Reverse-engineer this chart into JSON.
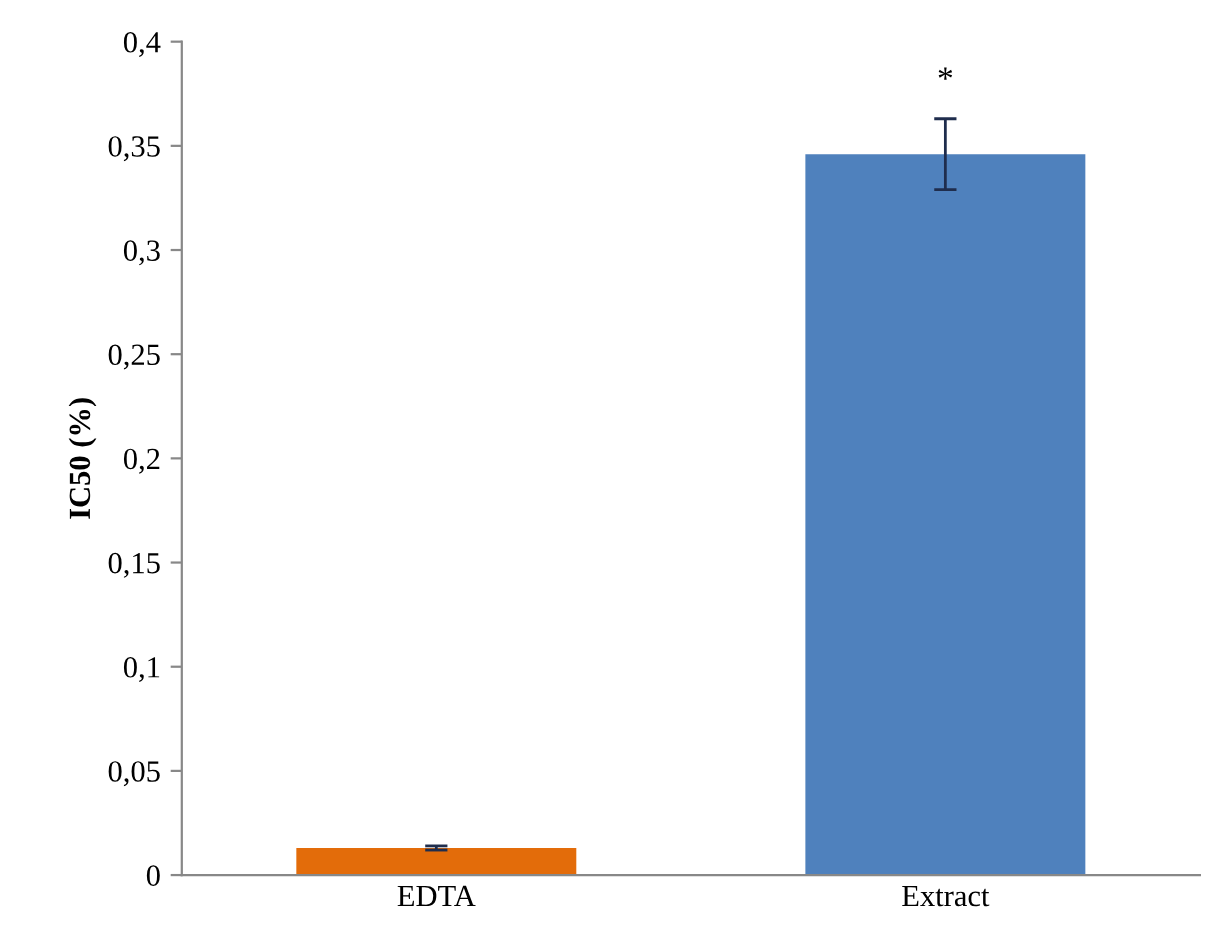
{
  "chart_data": {
    "type": "bar",
    "ylabel": "IC50 (%)",
    "categories": [
      "EDTA",
      "Extract"
    ],
    "values": [
      0.013,
      0.346
    ],
    "colors": [
      "#e36c0a",
      "#4f81bd"
    ],
    "errors": [
      0.001,
      0.017
    ],
    "ylim": [
      0,
      0.4
    ],
    "yticks": [
      {
        "value": 0,
        "label": "0"
      },
      {
        "value": 0.05,
        "label": "0,05"
      },
      {
        "value": 0.1,
        "label": "0,1"
      },
      {
        "value": 0.15,
        "label": "0,15"
      },
      {
        "value": 0.2,
        "label": "0,2"
      },
      {
        "value": 0.25,
        "label": "0,25"
      },
      {
        "value": 0.3,
        "label": "0,3"
      },
      {
        "value": 0.35,
        "label": "0,35"
      },
      {
        "value": 0.4,
        "label": "0,4"
      }
    ],
    "annotations": [
      "*"
    ],
    "grid": false,
    "legend": false
  }
}
